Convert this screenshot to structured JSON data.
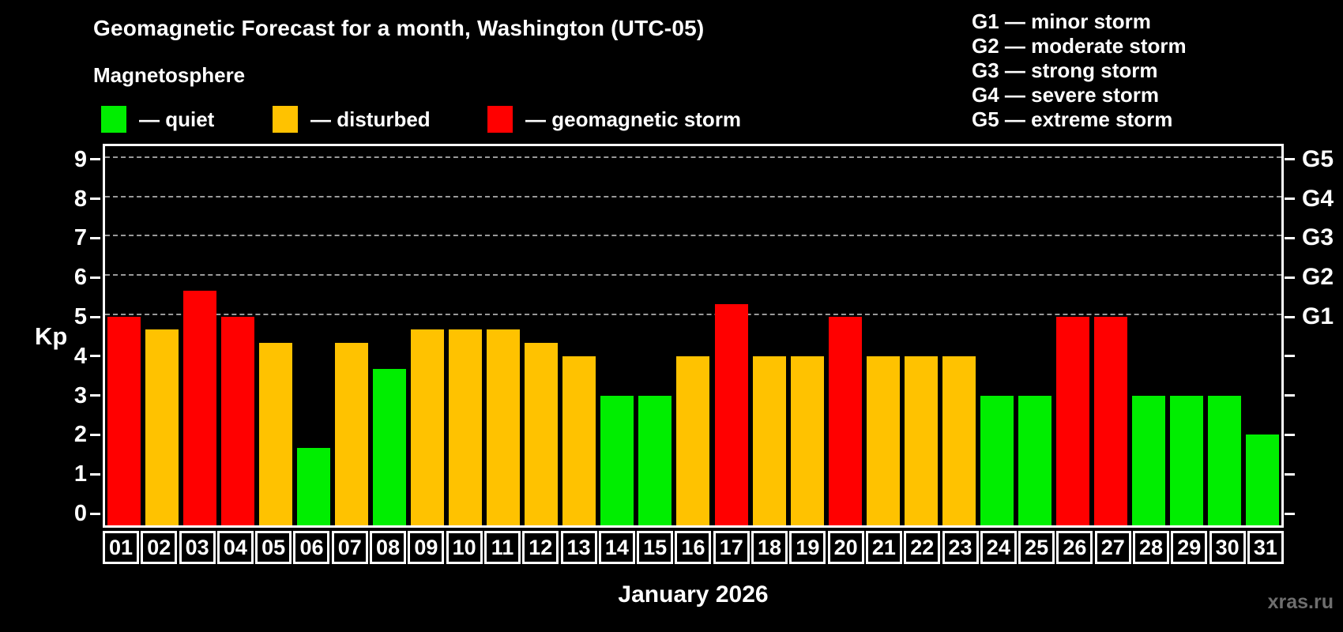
{
  "title": "Geomagnetic Forecast for a month, Washington (UTC-05)",
  "subtitle": "Magnetosphere",
  "status_legend": [
    {
      "key": "quiet",
      "label": "— quiet",
      "color": "#00ee00"
    },
    {
      "key": "disturbed",
      "label": "— disturbed",
      "color": "#ffc200"
    },
    {
      "key": "storm",
      "label": "— geomagnetic storm",
      "color": "#ff0000"
    }
  ],
  "g_legend": [
    {
      "label": "G1 — minor storm"
    },
    {
      "label": "G2 — moderate storm"
    },
    {
      "label": "G3 — strong storm"
    },
    {
      "label": "G4 — severe storm"
    },
    {
      "label": "G5 — extreme storm"
    }
  ],
  "chart_data": {
    "type": "bar",
    "title": "Geomagnetic Forecast for a month, Washington (UTC-05)",
    "xlabel": "January 2026",
    "ylabel": "Kp",
    "ylim": [
      0,
      9
    ],
    "grid": "dashed horizontal at Kp 5-9 (G1-G5 storm levels)",
    "legend_position": "top",
    "categories": [
      "01",
      "02",
      "03",
      "04",
      "05",
      "06",
      "07",
      "08",
      "09",
      "10",
      "11",
      "12",
      "13",
      "14",
      "15",
      "16",
      "17",
      "18",
      "19",
      "20",
      "21",
      "22",
      "23",
      "24",
      "25",
      "26",
      "27",
      "28",
      "29",
      "30",
      "31"
    ],
    "values": [
      5.0,
      4.67,
      5.67,
      5.0,
      4.33,
      1.67,
      4.33,
      3.67,
      4.67,
      4.67,
      4.67,
      4.33,
      4.0,
      3.0,
      3.0,
      4.0,
      5.33,
      4.0,
      4.0,
      5.0,
      4.0,
      4.0,
      4.0,
      3.0,
      3.0,
      5.0,
      5.0,
      3.0,
      3.0,
      3.0,
      2.0
    ],
    "statuses": [
      "storm",
      "disturbed",
      "storm",
      "storm",
      "disturbed",
      "quiet",
      "disturbed",
      "quiet",
      "disturbed",
      "disturbed",
      "disturbed",
      "disturbed",
      "disturbed",
      "quiet",
      "quiet",
      "disturbed",
      "storm",
      "disturbed",
      "disturbed",
      "storm",
      "disturbed",
      "disturbed",
      "disturbed",
      "quiet",
      "quiet",
      "storm",
      "storm",
      "quiet",
      "quiet",
      "quiet",
      "quiet"
    ],
    "colors_by_status": {
      "quiet": "#00ee00",
      "disturbed": "#ffc200",
      "storm": "#ff0000"
    },
    "yticks": [
      0,
      1,
      2,
      3,
      4,
      5,
      6,
      7,
      8,
      9
    ],
    "gridlines_at": [
      5,
      6,
      7,
      8,
      9
    ],
    "right_axis_labels": [
      {
        "kp": 5,
        "label": "G1"
      },
      {
        "kp": 6,
        "label": "G2"
      },
      {
        "kp": 7,
        "label": "G3"
      },
      {
        "kp": 8,
        "label": "G4"
      },
      {
        "kp": 9,
        "label": "G5"
      }
    ]
  },
  "footer": {
    "month_label": "January 2026",
    "watermark": "xras.ru"
  }
}
